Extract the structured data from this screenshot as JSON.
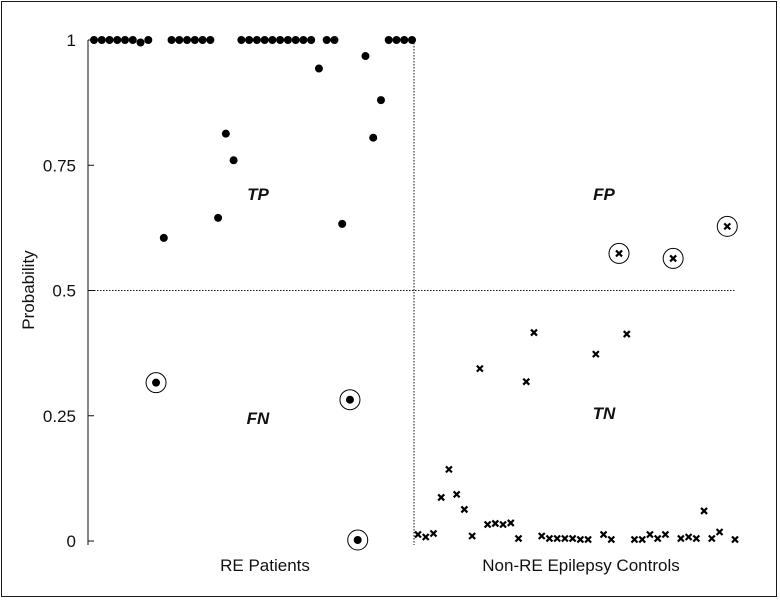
{
  "chart_data": {
    "type": "scatter",
    "ylabel": "Probability",
    "xlabel": "",
    "ylim": [
      0,
      1
    ],
    "yticks": [
      "0",
      "0.25",
      "0.5",
      "0.75",
      "1"
    ],
    "ytick_values": [
      0,
      0.25,
      0.5,
      0.75,
      1
    ],
    "threshold": 0.5,
    "grid": false,
    "categories": [
      "RE Patients",
      "Non-RE Epilepsy Controls"
    ],
    "quadrant_labels": {
      "TP": "TP",
      "FP": "FP",
      "FN": "FN",
      "TN": "TN"
    },
    "series": [
      {
        "marker": "dot",
        "group": "RE Patients",
        "points": [
          {
            "i": 1,
            "y": 1
          },
          {
            "i": 2,
            "y": 1
          },
          {
            "i": 3,
            "y": 1
          },
          {
            "i": 4,
            "y": 1
          },
          {
            "i": 5,
            "y": 1
          },
          {
            "i": 6,
            "y": 1
          },
          {
            "i": 7,
            "y": 0.995
          },
          {
            "i": 8,
            "y": 1
          },
          {
            "i": 9,
            "y": 0.316,
            "circled": true
          },
          {
            "i": 10,
            "y": 0.605
          },
          {
            "i": 11,
            "y": 1
          },
          {
            "i": 12,
            "y": 1
          },
          {
            "i": 13,
            "y": 1
          },
          {
            "i": 14,
            "y": 1
          },
          {
            "i": 15,
            "y": 1
          },
          {
            "i": 16,
            "y": 1
          },
          {
            "i": 17,
            "y": 0.645
          },
          {
            "i": 18,
            "y": 0.813
          },
          {
            "i": 19,
            "y": 0.76
          },
          {
            "i": 20,
            "y": 1
          },
          {
            "i": 21,
            "y": 1
          },
          {
            "i": 22,
            "y": 1
          },
          {
            "i": 23,
            "y": 1
          },
          {
            "i": 24,
            "y": 1
          },
          {
            "i": 25,
            "y": 1
          },
          {
            "i": 26,
            "y": 1
          },
          {
            "i": 27,
            "y": 1
          },
          {
            "i": 28,
            "y": 1
          },
          {
            "i": 29,
            "y": 1
          },
          {
            "i": 30,
            "y": 0.943
          },
          {
            "i": 31,
            "y": 1
          },
          {
            "i": 32,
            "y": 1
          },
          {
            "i": 33,
            "y": 0.633
          },
          {
            "i": 34,
            "y": 0.282,
            "circled": true
          },
          {
            "i": 35,
            "y": 0.002,
            "circled": true
          },
          {
            "i": 36,
            "y": 0.968
          },
          {
            "i": 37,
            "y": 0.805
          },
          {
            "i": 38,
            "y": 0.88
          },
          {
            "i": 39,
            "y": 1
          },
          {
            "i": 40,
            "y": 1
          },
          {
            "i": 41,
            "y": 1
          },
          {
            "i": 42,
            "y": 1
          }
        ]
      },
      {
        "marker": "x",
        "group": "Non-RE Epilepsy Controls",
        "points": [
          {
            "i": 1,
            "y": 0.013
          },
          {
            "i": 2,
            "y": 0.008
          },
          {
            "i": 3,
            "y": 0.015
          },
          {
            "i": 4,
            "y": 0.087
          },
          {
            "i": 5,
            "y": 0.143
          },
          {
            "i": 6,
            "y": 0.093
          },
          {
            "i": 7,
            "y": 0.063
          },
          {
            "i": 8,
            "y": 0.01
          },
          {
            "i": 9,
            "y": 0.344
          },
          {
            "i": 10,
            "y": 0.033
          },
          {
            "i": 11,
            "y": 0.035
          },
          {
            "i": 12,
            "y": 0.033
          },
          {
            "i": 13,
            "y": 0.036
          },
          {
            "i": 14,
            "y": 0.005
          },
          {
            "i": 15,
            "y": 0.318
          },
          {
            "i": 16,
            "y": 0.416
          },
          {
            "i": 17,
            "y": 0.01
          },
          {
            "i": 18,
            "y": 0.005
          },
          {
            "i": 19,
            "y": 0.005
          },
          {
            "i": 20,
            "y": 0.005
          },
          {
            "i": 21,
            "y": 0.005
          },
          {
            "i": 22,
            "y": 0.003
          },
          {
            "i": 23,
            "y": 0.003
          },
          {
            "i": 24,
            "y": 0.373
          },
          {
            "i": 25,
            "y": 0.013
          },
          {
            "i": 26,
            "y": 0.003
          },
          {
            "i": 27,
            "y": 0.574,
            "circled": true
          },
          {
            "i": 28,
            "y": 0.413
          },
          {
            "i": 29,
            "y": 0.003
          },
          {
            "i": 30,
            "y": 0.003
          },
          {
            "i": 31,
            "y": 0.013
          },
          {
            "i": 32,
            "y": 0.005
          },
          {
            "i": 33,
            "y": 0.013
          },
          {
            "i": 34,
            "y": 0.564,
            "circled": true
          },
          {
            "i": 35,
            "y": 0.005
          },
          {
            "i": 36,
            "y": 0.008
          },
          {
            "i": 37,
            "y": 0.005
          },
          {
            "i": 38,
            "y": 0.06
          },
          {
            "i": 39,
            "y": 0.005
          },
          {
            "i": 40,
            "y": 0.018
          },
          {
            "i": 41,
            "y": 0.628,
            "circled": true
          },
          {
            "i": 42,
            "y": 0.003
          }
        ]
      }
    ]
  }
}
